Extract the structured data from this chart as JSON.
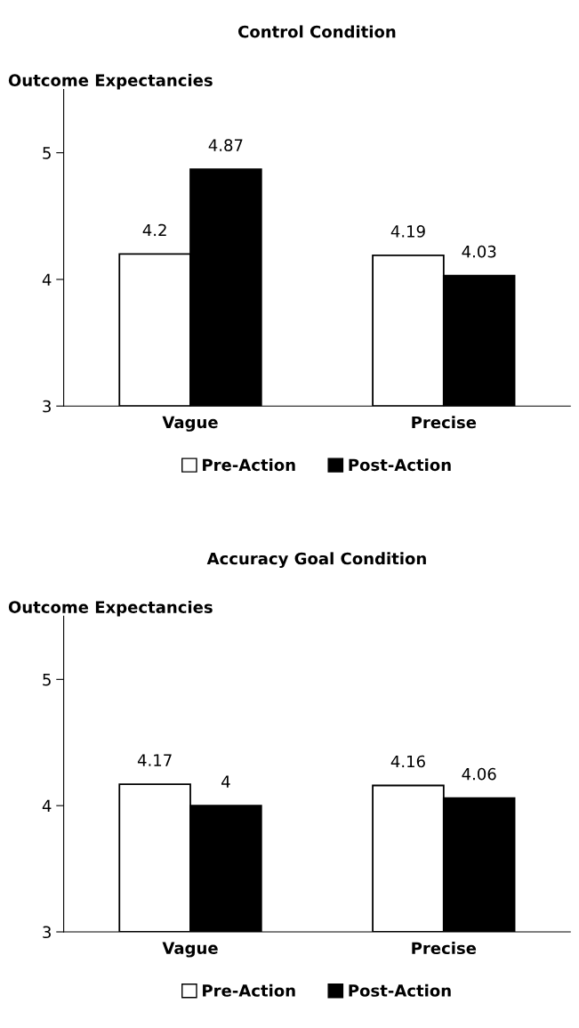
{
  "chart_data": [
    {
      "type": "bar",
      "title": "Control Condition",
      "ylabel": "Outcome Expectancies",
      "categories": [
        "Vague",
        "Precise"
      ],
      "series": [
        {
          "name": "Pre-Action",
          "color": "#ffffff",
          "values": [
            4.2,
            4.19
          ]
        },
        {
          "name": "Post-Action",
          "color": "#000000",
          "values": [
            4.87,
            4.03
          ]
        }
      ],
      "ylim": [
        3,
        5.5
      ],
      "yticks": [
        3,
        4,
        5
      ],
      "grid": false,
      "legend": "bottom",
      "data_labels": true
    },
    {
      "type": "bar",
      "title": "Accuracy Goal Condition",
      "ylabel": "Outcome Expectancies",
      "categories": [
        "Vague",
        "Precise"
      ],
      "series": [
        {
          "name": "Pre-Action",
          "color": "#ffffff",
          "values": [
            4.17,
            4.16
          ]
        },
        {
          "name": "Post-Action",
          "color": "#000000",
          "values": [
            4,
            4.06
          ]
        }
      ],
      "ylim": [
        3,
        5.5
      ],
      "yticks": [
        3,
        4,
        5
      ],
      "grid": false,
      "legend": "bottom",
      "data_labels": true
    }
  ]
}
